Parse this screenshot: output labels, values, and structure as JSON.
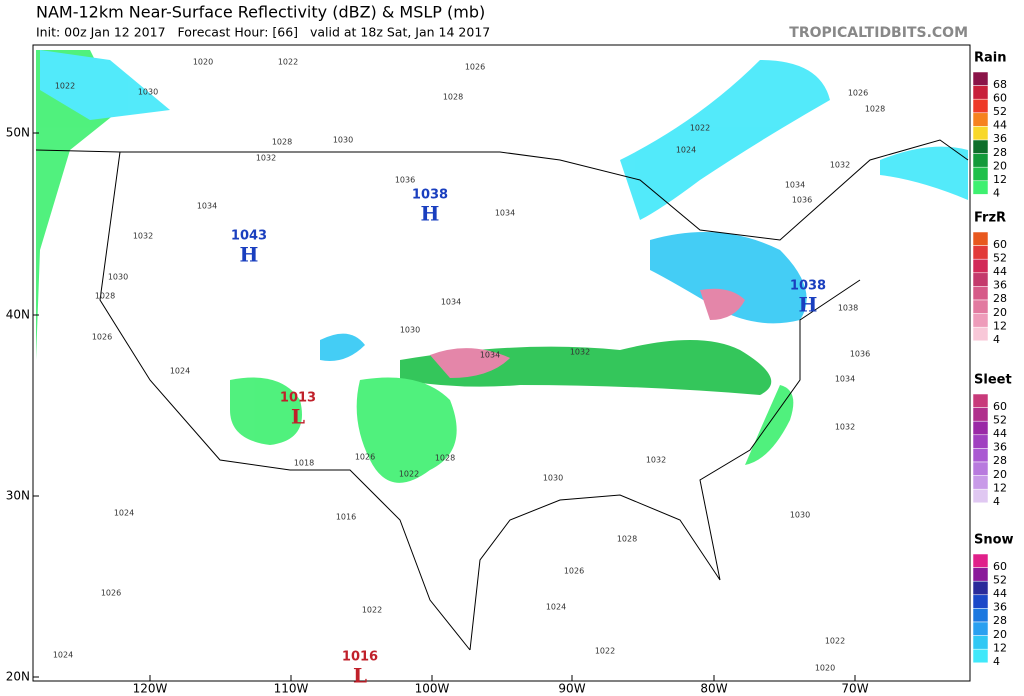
{
  "header": {
    "title": "NAM-12km Near-Surface Reflectivity (dBZ) & MSLP (mb)",
    "subtitle": "Init: 00z Jan 12 2017   Forecast Hour: [66]   valid at 18z Sat, Jan 14 2017",
    "site": "TROPICALTIDBITS.COM"
  },
  "map": {
    "lat_labels": [
      "50N",
      "40N",
      "30N",
      "20N"
    ],
    "lon_labels": [
      "120W",
      "110W",
      "100W",
      "90W",
      "80W",
      "70W"
    ],
    "pressure_centers": [
      {
        "type": "H",
        "value": 1038
      },
      {
        "type": "H",
        "value": 1043
      },
      {
        "type": "H",
        "value": 1038
      },
      {
        "type": "L",
        "value": 1013
      },
      {
        "type": "L",
        "value": 1016
      }
    ],
    "isobar_labels": [
      1022,
      1030,
      1020,
      1022,
      1026,
      1028,
      1030,
      1032,
      1028,
      1034,
      1036,
      1034,
      1032,
      1030,
      1028,
      1026,
      1024,
      1034,
      1034,
      1032,
      1032,
      1030,
      1028,
      1026,
      1024,
      1022,
      1024,
      1026,
      1024,
      1016,
      1018,
      1022,
      1026,
      1028,
      1022,
      1030,
      1032,
      1034,
      1036,
      1038,
      1034,
      1036,
      1022,
      1024,
      1026,
      1028,
      1032,
      1020,
      1022,
      1030
    ]
  },
  "legend": [
    {
      "title": "Rain",
      "levels": [
        {
          "value": 68,
          "color": "#8a1448"
        },
        {
          "value": 60,
          "color": "#c8203a"
        },
        {
          "value": 52,
          "color": "#ee3a28"
        },
        {
          "value": 44,
          "color": "#f6821e"
        },
        {
          "value": 36,
          "color": "#f8d82a"
        },
        {
          "value": 28,
          "color": "#0e6e2a"
        },
        {
          "value": 20,
          "color": "#139a3a"
        },
        {
          "value": 12,
          "color": "#1fc04a"
        },
        {
          "value": 4,
          "color": "#3ef070"
        }
      ]
    },
    {
      "title": "FrzR",
      "levels": [
        {
          "value": 60,
          "color": "#e8581e"
        },
        {
          "value": 52,
          "color": "#e23a3a"
        },
        {
          "value": 44,
          "color": "#d22a58"
        },
        {
          "value": 36,
          "color": "#c43a6c"
        },
        {
          "value": 28,
          "color": "#d65a88"
        },
        {
          "value": 20,
          "color": "#e27aa0"
        },
        {
          "value": 12,
          "color": "#ee9cba"
        },
        {
          "value": 4,
          "color": "#f8c8d8"
        }
      ]
    },
    {
      "title": "Sleet",
      "levels": [
        {
          "value": 60,
          "color": "#c83a7a"
        },
        {
          "value": 52,
          "color": "#b0308c"
        },
        {
          "value": 44,
          "color": "#9a28a6"
        },
        {
          "value": 36,
          "color": "#a040c0"
        },
        {
          "value": 28,
          "color": "#aa5ad2"
        },
        {
          "value": 20,
          "color": "#b87ade"
        },
        {
          "value": 12,
          "color": "#c89ae8"
        },
        {
          "value": 4,
          "color": "#e0c8f2"
        }
      ]
    },
    {
      "title": "Snow",
      "levels": [
        {
          "value": 60,
          "color": "#e0208a"
        },
        {
          "value": 52,
          "color": "#8a1a9a"
        },
        {
          "value": 44,
          "color": "#2a2a9a"
        },
        {
          "value": 36,
          "color": "#1a48c8"
        },
        {
          "value": 28,
          "color": "#1c78e0"
        },
        {
          "value": 20,
          "color": "#2aa0f0"
        },
        {
          "value": 12,
          "color": "#30c8f4"
        },
        {
          "value": 4,
          "color": "#40e8fa"
        }
      ]
    }
  ]
}
